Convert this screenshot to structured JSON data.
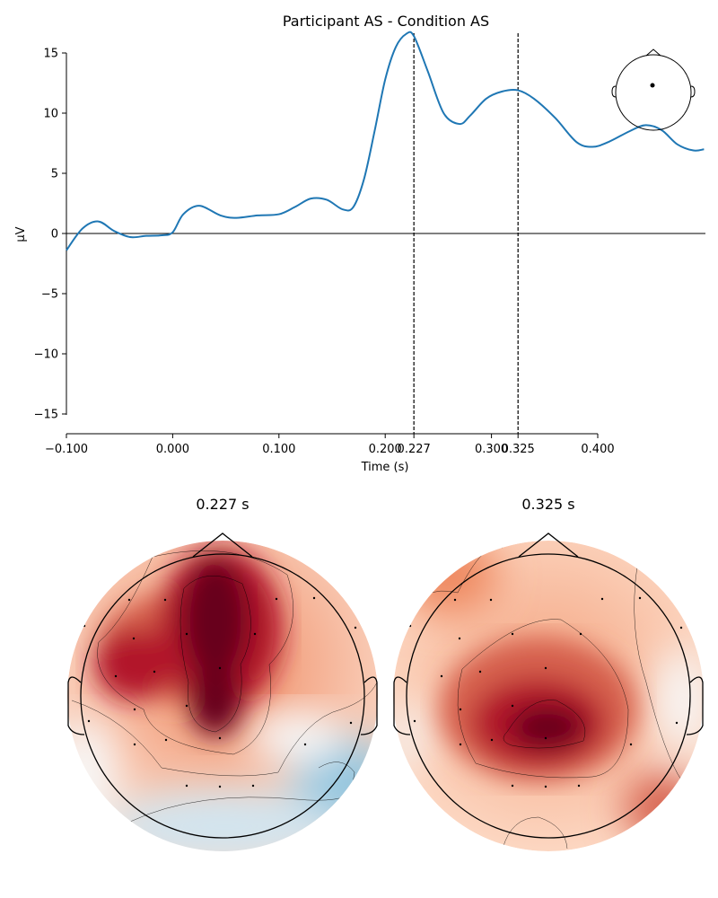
{
  "chart_data": [
    {
      "type": "line",
      "title": "Participant AS - Condition AS",
      "xlabel": "Time (s)",
      "ylabel": "µV",
      "xlim": [
        -0.1,
        0.5
      ],
      "ylim": [
        -16.5,
        16.5
      ],
      "x_ticks": [
        -0.1,
        0.0,
        0.1,
        0.2,
        0.227,
        0.3,
        0.325,
        0.4
      ],
      "x_tick_labels": [
        "−0.100",
        "0.000",
        "0.100",
        "0.200",
        "0.227",
        "0.300",
        "0.325",
        "0.400"
      ],
      "y_ticks": [
        -15,
        -10,
        -5,
        0,
        5,
        10,
        15
      ],
      "y_tick_labels": [
        "−15",
        "−10",
        "−5",
        "0",
        "5",
        "10",
        "15"
      ],
      "grid": false,
      "zero_line": true,
      "vlines": [
        0.227,
        0.325
      ],
      "series": [
        {
          "color": "#1f77b4",
          "x": [
            -0.1,
            -0.085,
            -0.07,
            -0.055,
            -0.04,
            -0.025,
            -0.01,
            0.0,
            0.01,
            0.025,
            0.045,
            0.06,
            0.08,
            0.1,
            0.115,
            0.13,
            0.145,
            0.16,
            0.17,
            0.18,
            0.19,
            0.2,
            0.21,
            0.22,
            0.227,
            0.24,
            0.255,
            0.27,
            0.28,
            0.295,
            0.31,
            0.325,
            0.34,
            0.36,
            0.38,
            0.395,
            0.41,
            0.43,
            0.445,
            0.46,
            0.475,
            0.49,
            0.5
          ],
          "y": [
            -1.4,
            0.4,
            1.0,
            0.2,
            -0.3,
            -0.2,
            -0.15,
            0.1,
            1.6,
            2.3,
            1.5,
            1.3,
            1.5,
            1.6,
            2.2,
            2.9,
            2.8,
            2.0,
            2.2,
            4.5,
            8.5,
            12.8,
            15.5,
            16.6,
            16.4,
            13.5,
            10.0,
            9.1,
            9.8,
            11.2,
            11.8,
            11.9,
            11.2,
            9.6,
            7.6,
            7.2,
            7.6,
            8.5,
            9.0,
            8.6,
            7.4,
            6.9,
            7.0
          ]
        }
      ],
      "sensor_inset": "head outline with single sensor dot"
    },
    {
      "type": "heatmap",
      "subtype": "topomap",
      "title": "0.227 s",
      "colormap": "RdBu_r",
      "description": "strong positive (dark red) over central/frontal midline, blue negative toward posterior right"
    },
    {
      "type": "heatmap",
      "subtype": "topomap",
      "title": "0.325 s",
      "colormap": "RdBu_r",
      "description": "positive peak centered slightly posterior-left of center, red across most of scalp"
    }
  ]
}
